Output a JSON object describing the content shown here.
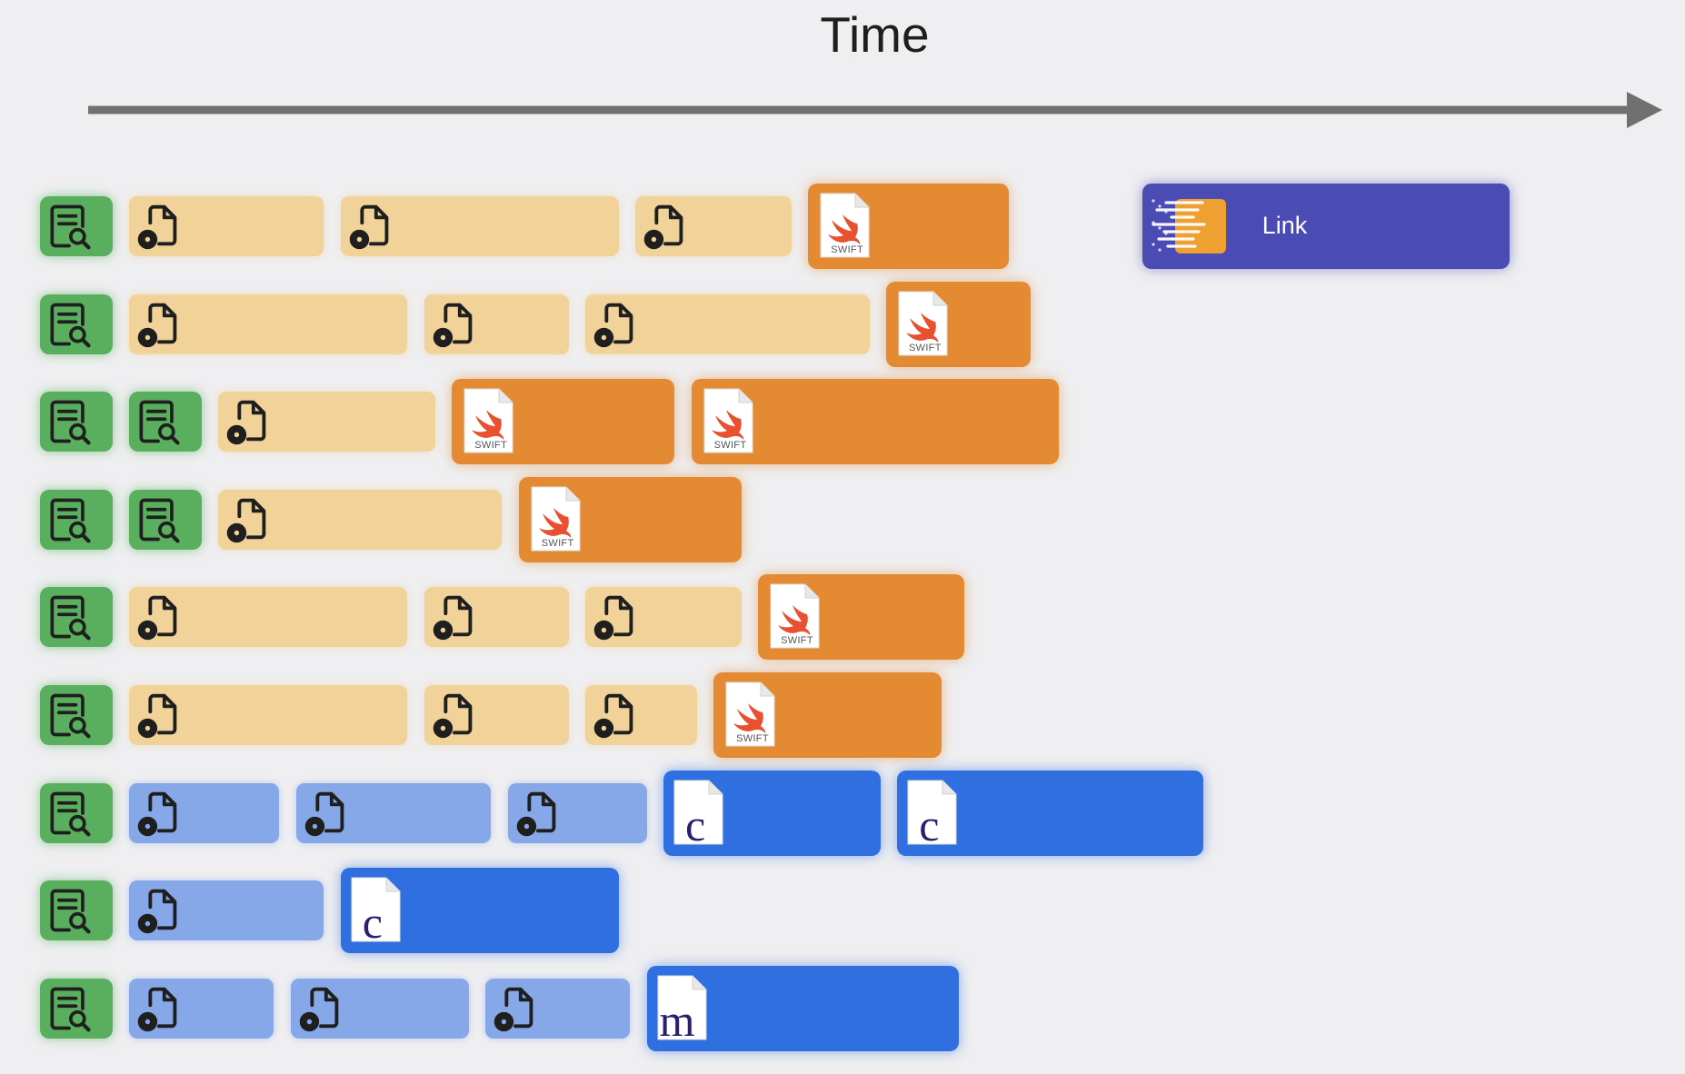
{
  "axis": {
    "label": "Time"
  },
  "labels": {
    "link": "Link",
    "swift_tag": "SWIFT",
    "c_letter": "c",
    "m_letter": "m"
  },
  "colors": {
    "scan": "#5aaf5e",
    "config_swift": "#f1d298",
    "compile_swift": "#e48a33",
    "config_c": "#87a8e8",
    "compile_c": "#2f6fe0",
    "link": "#4a4bb3",
    "arrow": "#707070"
  },
  "block_types": {
    "scan": {
      "icon": "document-search-icon"
    },
    "config-swift": {
      "icon": "document-gear-icon"
    },
    "compile-swift": {
      "icon": "swift-file-icon"
    },
    "config-c": {
      "icon": "document-gear-icon"
    },
    "compile-c": {
      "icon": "c-file-icon"
    },
    "compile-m": {
      "icon": "m-file-icon"
    },
    "link": {
      "icon": "binary-speed-icon"
    }
  },
  "timeline_rows": [
    {
      "row": 1,
      "tasks": [
        {
          "type": "scan",
          "start": 0.0,
          "end": 0.65
        },
        {
          "type": "config-swift",
          "start": 0.8,
          "end": 2.55
        },
        {
          "type": "config-swift",
          "start": 2.7,
          "end": 5.2
        },
        {
          "type": "config-swift",
          "start": 5.35,
          "end": 6.75
        },
        {
          "type": "compile-swift",
          "start": 6.9,
          "end": 8.7
        },
        {
          "type": "link",
          "start": 9.9,
          "end": 13.2
        }
      ]
    },
    {
      "row": 2,
      "tasks": [
        {
          "type": "scan",
          "start": 0.0,
          "end": 0.65
        },
        {
          "type": "config-swift",
          "start": 0.8,
          "end": 3.3
        },
        {
          "type": "config-swift",
          "start": 3.45,
          "end": 4.75
        },
        {
          "type": "config-swift",
          "start": 4.9,
          "end": 7.45
        },
        {
          "type": "compile-swift",
          "start": 7.6,
          "end": 8.9
        }
      ]
    },
    {
      "row": 3,
      "tasks": [
        {
          "type": "scan",
          "start": 0.0,
          "end": 0.65
        },
        {
          "type": "scan",
          "start": 0.8,
          "end": 1.45
        },
        {
          "type": "config-swift",
          "start": 1.6,
          "end": 3.55
        },
        {
          "type": "compile-swift",
          "start": 3.7,
          "end": 5.7
        },
        {
          "type": "compile-swift",
          "start": 5.85,
          "end": 9.15
        }
      ]
    },
    {
      "row": 4,
      "tasks": [
        {
          "type": "scan",
          "start": 0.0,
          "end": 0.65
        },
        {
          "type": "scan",
          "start": 0.8,
          "end": 1.45
        },
        {
          "type": "config-swift",
          "start": 1.6,
          "end": 4.15
        },
        {
          "type": "compile-swift",
          "start": 4.3,
          "end": 6.3
        }
      ]
    },
    {
      "row": 5,
      "tasks": [
        {
          "type": "scan",
          "start": 0.0,
          "end": 0.65
        },
        {
          "type": "config-swift",
          "start": 0.8,
          "end": 3.3
        },
        {
          "type": "config-swift",
          "start": 3.45,
          "end": 4.75
        },
        {
          "type": "config-swift",
          "start": 4.9,
          "end": 6.3
        },
        {
          "type": "compile-swift",
          "start": 6.45,
          "end": 8.3
        }
      ]
    },
    {
      "row": 6,
      "tasks": [
        {
          "type": "scan",
          "start": 0.0,
          "end": 0.65
        },
        {
          "type": "config-swift",
          "start": 0.8,
          "end": 3.3
        },
        {
          "type": "config-swift",
          "start": 3.45,
          "end": 4.75
        },
        {
          "type": "config-swift",
          "start": 4.9,
          "end": 5.9
        },
        {
          "type": "compile-swift",
          "start": 6.05,
          "end": 8.1
        }
      ]
    },
    {
      "row": 7,
      "tasks": [
        {
          "type": "scan",
          "start": 0.0,
          "end": 0.65
        },
        {
          "type": "config-c",
          "start": 0.8,
          "end": 2.15
        },
        {
          "type": "config-c",
          "start": 2.3,
          "end": 4.05
        },
        {
          "type": "config-c",
          "start": 4.2,
          "end": 5.45
        },
        {
          "type": "compile-c",
          "start": 5.6,
          "end": 7.55
        },
        {
          "type": "compile-c",
          "start": 7.7,
          "end": 10.45
        }
      ]
    },
    {
      "row": 8,
      "tasks": [
        {
          "type": "scan",
          "start": 0.0,
          "end": 0.65
        },
        {
          "type": "config-c",
          "start": 0.8,
          "end": 2.55
        },
        {
          "type": "compile-c",
          "start": 2.7,
          "end": 5.2
        }
      ]
    },
    {
      "row": 9,
      "tasks": [
        {
          "type": "scan",
          "start": 0.0,
          "end": 0.65
        },
        {
          "type": "config-c",
          "start": 0.8,
          "end": 2.1
        },
        {
          "type": "config-c",
          "start": 2.25,
          "end": 3.85
        },
        {
          "type": "config-c",
          "start": 4.0,
          "end": 5.3
        },
        {
          "type": "compile-m",
          "start": 5.45,
          "end": 8.25
        }
      ]
    }
  ]
}
